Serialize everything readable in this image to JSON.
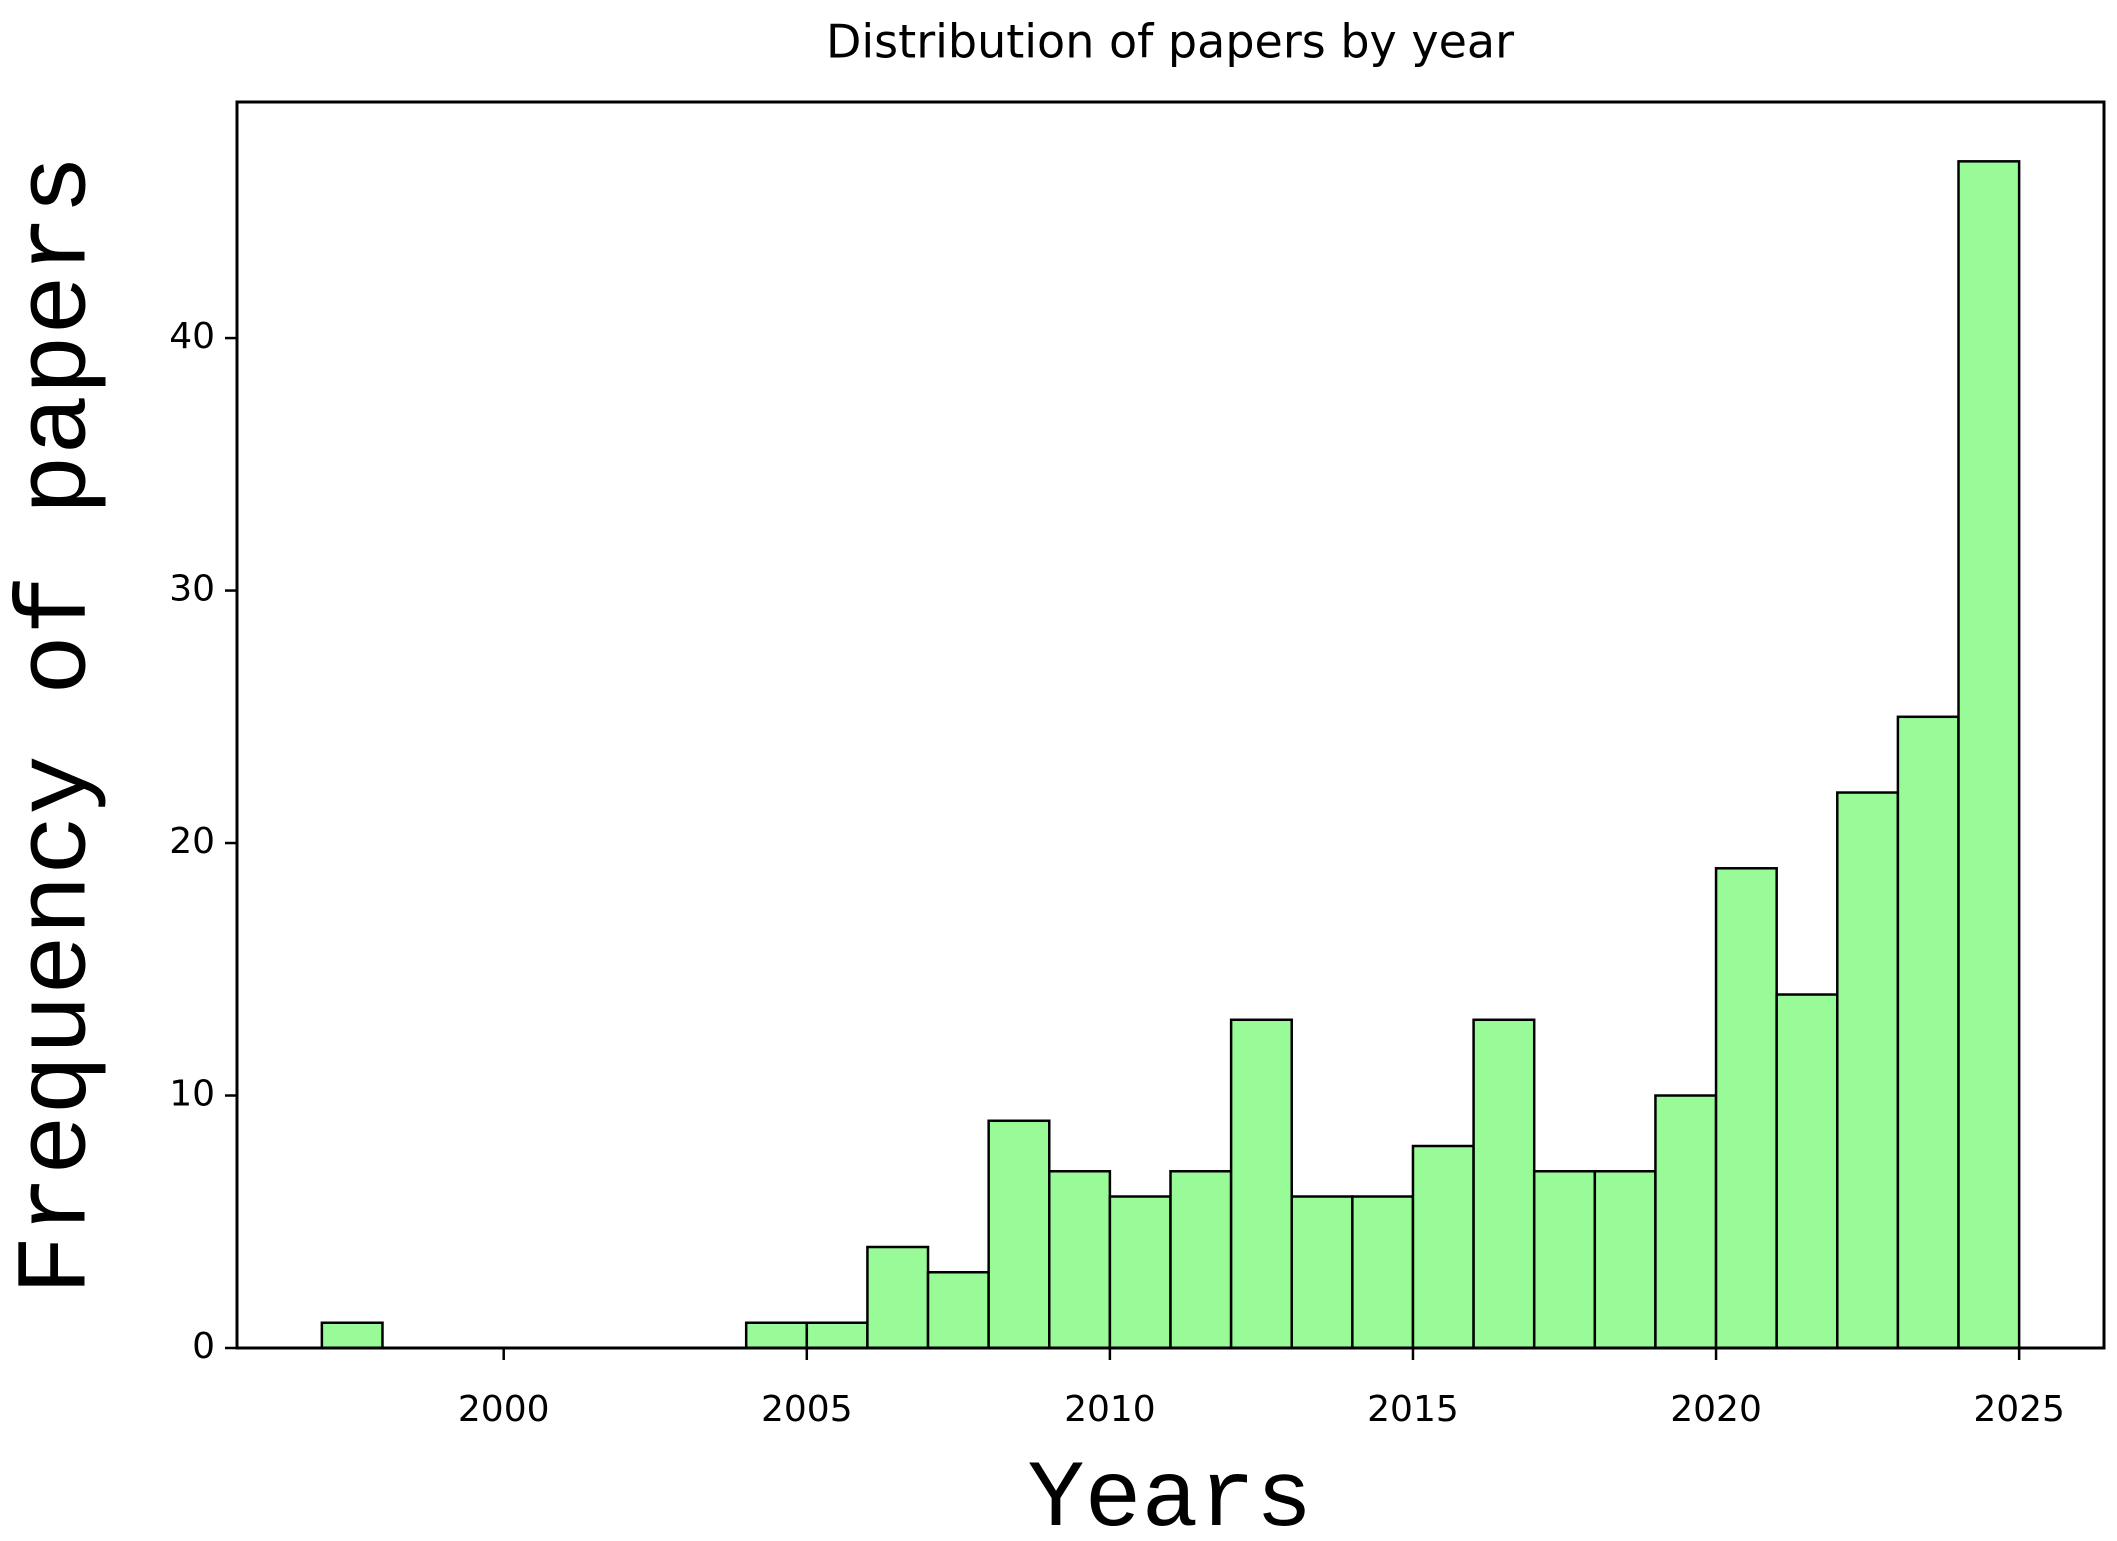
{
  "chart_data": {
    "type": "histogram",
    "title": "Distribution of papers by year",
    "x_label": "Years",
    "y_label": "Frequency of papers",
    "bins": [
      1997,
      1998,
      1999,
      2000,
      2001,
      2002,
      2003,
      2004,
      2005,
      2006,
      2007,
      2008,
      2009,
      2010,
      2011,
      2012,
      2013,
      2014,
      2015,
      2016,
      2017,
      2018,
      2019,
      2020,
      2021,
      2022,
      2023,
      2024,
      2025
    ],
    "values": [
      1,
      0,
      0,
      0,
      0,
      0,
      0,
      1,
      1,
      4,
      3,
      9,
      7,
      6,
      7,
      13,
      6,
      6,
      8,
      13,
      7,
      7,
      10,
      19,
      14,
      22,
      25,
      47
    ],
    "color": "#98fb98",
    "edgecolor": "#000000",
    "xlim": [
      1995.6,
      2026.4
    ],
    "ylim": [
      0,
      49.35
    ],
    "xticks": [
      2000,
      2005,
      2010,
      2015,
      2020,
      2025
    ],
    "yticks": [
      0,
      10,
      20,
      30,
      40
    ]
  }
}
